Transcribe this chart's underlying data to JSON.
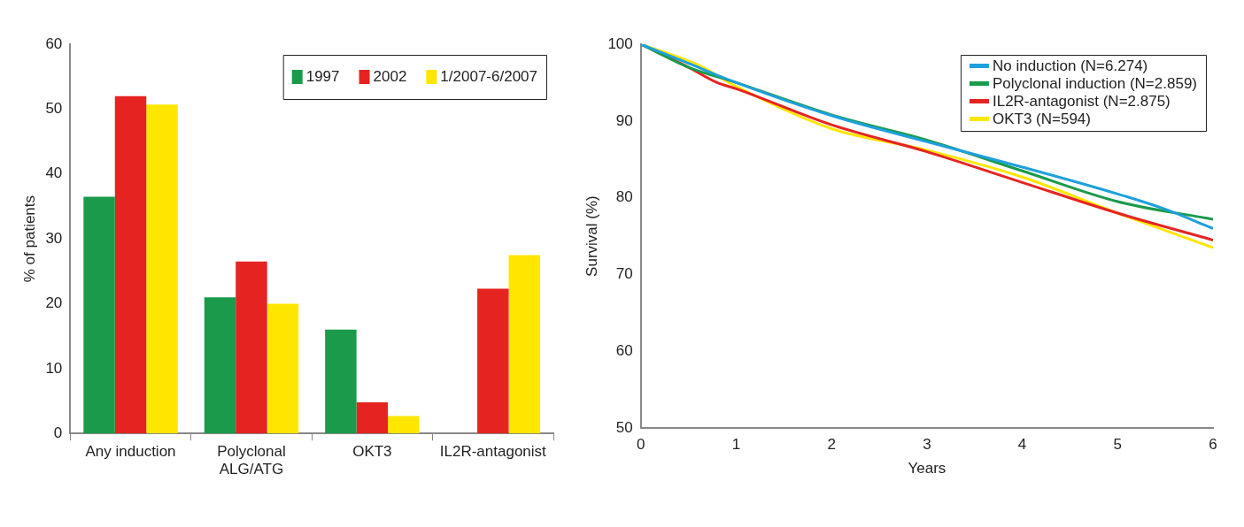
{
  "chart_data": [
    {
      "type": "bar",
      "ylabel": "% of patients",
      "categories": [
        "Any induction",
        "Polyclonal\nALG/ATG",
        "OKT3",
        "IL2R-antagonist"
      ],
      "series": [
        {
          "name": "1997",
          "color": "#1a9a4a",
          "values": [
            36.5,
            21,
            16,
            null
          ]
        },
        {
          "name": "2002",
          "color": "#e52421",
          "values": [
            52,
            26.5,
            4.8,
            22.3
          ]
        },
        {
          "name": "1/2007-6/2007",
          "color": "#ffe600",
          "values": [
            50.7,
            20,
            2.7,
            27.5
          ]
        }
      ],
      "ylim": [
        0,
        60
      ],
      "yticks": [
        0,
        10,
        20,
        30,
        40,
        50,
        60
      ],
      "grid": false,
      "legend": "top right"
    },
    {
      "type": "line",
      "xlabel": "Years",
      "ylabel": "Survival (%)",
      "series": [
        {
          "name": "No induction (N=6.274)",
          "color": "#1ea0dc",
          "x": [
            0,
            0.5,
            1,
            2,
            3,
            4,
            5,
            5.5,
            6
          ],
          "values": [
            100,
            97.5,
            95,
            90.7,
            87.3,
            84,
            80.5,
            78.5,
            76
          ]
        },
        {
          "name": "Polyclonal induction (N=2.859)",
          "color": "#1a9a4a",
          "x": [
            0,
            0.5,
            1,
            2,
            3,
            4,
            5,
            6
          ],
          "values": [
            100,
            97,
            95,
            90.8,
            87.5,
            83.5,
            79.5,
            77.2
          ]
        },
        {
          "name": "IL2R-antagonist (N=2.875)",
          "color": "#e52421",
          "x": [
            0,
            0.5,
            0.8,
            1,
            2,
            3,
            4,
            5,
            6
          ],
          "values": [
            100,
            97,
            95,
            94.2,
            89.5,
            86,
            82,
            78,
            74.5
          ]
        },
        {
          "name": "OKT3 (N=594)",
          "color": "#ffe600",
          "x": [
            0,
            0.6,
            1,
            2,
            3,
            4,
            5,
            6
          ],
          "values": [
            100,
            97.3,
            94.5,
            89,
            86.2,
            82.7,
            78,
            73.5
          ]
        }
      ],
      "xlim": [
        0,
        6
      ],
      "xticks": [
        0,
        1,
        2,
        3,
        4,
        5,
        6
      ],
      "ylim": [
        50,
        100
      ],
      "yticks": [
        50,
        60,
        70,
        80,
        90,
        100
      ],
      "grid": false,
      "legend": "top right",
      "marker": "none",
      "line_style": "solid"
    }
  ]
}
